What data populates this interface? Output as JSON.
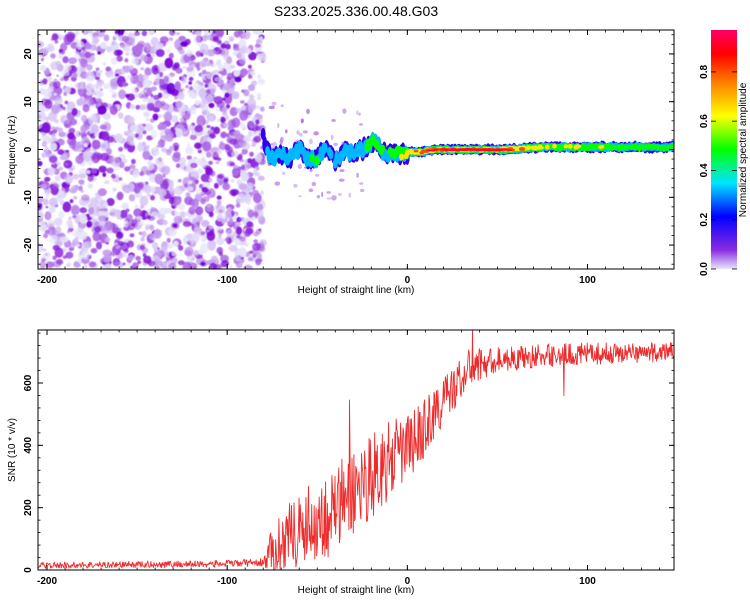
{
  "title": "S233.2025.336.00.48.G03",
  "chart_data": [
    {
      "type": "heatmap",
      "title": "S233.2025.336.00.48.G03",
      "xlabel": "Height of straight line (km)",
      "ylabel": "Frequency (Hz)",
      "xlim": [
        -205,
        148
      ],
      "ylim": [
        -25,
        25
      ],
      "xticks": [
        -200,
        -100,
        0,
        100
      ],
      "yticks": [
        -20,
        -10,
        0,
        10,
        20
      ],
      "xtick_labels": [
        "-200",
        "-100",
        "0",
        "100"
      ],
      "ytick_labels": [
        "-20",
        "-10",
        "0",
        "10",
        "20"
      ],
      "colorbar": {
        "label": "Normalized spectral amplitude",
        "range": [
          0,
          0.97
        ],
        "ticks": [
          0.0,
          0.2,
          0.4,
          0.6,
          0.8
        ],
        "tick_labels": [
          "0.0",
          "0.2",
          "0.4",
          "0.6",
          "0.8"
        ],
        "colors": [
          "#e6e6fa",
          "#7b00d4",
          "#0000ff",
          "#00e6ff",
          "#00ff00",
          "#ffff00",
          "#ff7f00",
          "#ff0000",
          "#ff0066"
        ]
      },
      "noise_region": {
        "x_from": -205,
        "x_to": -80,
        "freq_from": -25,
        "freq_to": 25,
        "amplitude": "0.0-0.2 speckle"
      },
      "signal_ridge": [
        {
          "x": -80,
          "freq": 3,
          "amp": 0.15
        },
        {
          "x": -78,
          "freq": 0,
          "amp": 0.25
        },
        {
          "x": -75,
          "freq": -2,
          "amp": 0.35
        },
        {
          "x": -70,
          "freq": -1,
          "amp": 0.3
        },
        {
          "x": -65,
          "freq": -2,
          "amp": 0.35
        },
        {
          "x": -60,
          "freq": 0,
          "amp": 0.3
        },
        {
          "x": -55,
          "freq": -2,
          "amp": 0.35
        },
        {
          "x": -50,
          "freq": -2,
          "amp": 0.4
        },
        {
          "x": -45,
          "freq": 1,
          "amp": 0.3
        },
        {
          "x": -40,
          "freq": -3,
          "amp": 0.3
        },
        {
          "x": -35,
          "freq": 0,
          "amp": 0.4
        },
        {
          "x": -30,
          "freq": -1,
          "amp": 0.35
        },
        {
          "x": -25,
          "freq": 0,
          "amp": 0.4
        },
        {
          "x": -18,
          "freq": 2,
          "amp": 0.5
        },
        {
          "x": -12,
          "freq": -1,
          "amp": 0.35
        },
        {
          "x": -8,
          "freq": -0.5,
          "amp": 0.45
        },
        {
          "x": -3,
          "freq": -1,
          "amp": 0.55
        },
        {
          "x": 2,
          "freq": -0.5,
          "amp": 0.6
        },
        {
          "x": 8,
          "freq": -0.5,
          "amp": 0.7
        },
        {
          "x": 15,
          "freq": 0,
          "amp": 0.8
        },
        {
          "x": 25,
          "freq": 0,
          "amp": 0.92
        },
        {
          "x": 40,
          "freq": 0,
          "amp": 0.95
        },
        {
          "x": 55,
          "freq": 0,
          "amp": 0.75
        },
        {
          "x": 75,
          "freq": 0.5,
          "amp": 0.5
        },
        {
          "x": 100,
          "freq": 0.5,
          "amp": 0.5
        },
        {
          "x": 125,
          "freq": 0.5,
          "amp": 0.45
        },
        {
          "x": 148,
          "freq": 0.5,
          "amp": 0.4
        }
      ]
    },
    {
      "type": "line",
      "xlabel": "Height of straight line (km)",
      "ylabel": "SNR (10 * v/v)",
      "xlim": [
        -205,
        148
      ],
      "ylim": [
        0,
        770
      ],
      "xticks": [
        -200,
        -100,
        0,
        100
      ],
      "yticks": [
        0,
        200,
        400,
        600
      ],
      "xtick_labels": [
        "-200",
        "-100",
        "0",
        "100"
      ],
      "ytick_labels": [
        "0",
        "200",
        "400",
        "600"
      ],
      "series": [
        {
          "name": "SNR",
          "color": "#ee2b2b",
          "trend_x": [
            -205,
            -100,
            -80,
            -75,
            -65,
            -55,
            -45,
            -35,
            -25,
            -15,
            -5,
            5,
            15,
            25,
            35,
            50,
            80,
            110,
            148
          ],
          "trend_y": [
            15,
            20,
            25,
            60,
            120,
            150,
            170,
            220,
            280,
            330,
            370,
            420,
            500,
            580,
            650,
            675,
            690,
            695,
            700
          ],
          "noise_amplitude_x": [
            -205,
            -80,
            -75,
            -40,
            -20,
            0,
            30,
            50,
            148
          ],
          "noise_amplitude": [
            10,
            12,
            80,
            150,
            140,
            110,
            70,
            40,
            30
          ]
        }
      ],
      "spikes": [
        {
          "x": -32,
          "y": 545
        },
        {
          "x": 36,
          "y": 770
        },
        {
          "x": 87,
          "y": 560
        },
        {
          "x": -62,
          "y": 10
        }
      ]
    }
  ]
}
